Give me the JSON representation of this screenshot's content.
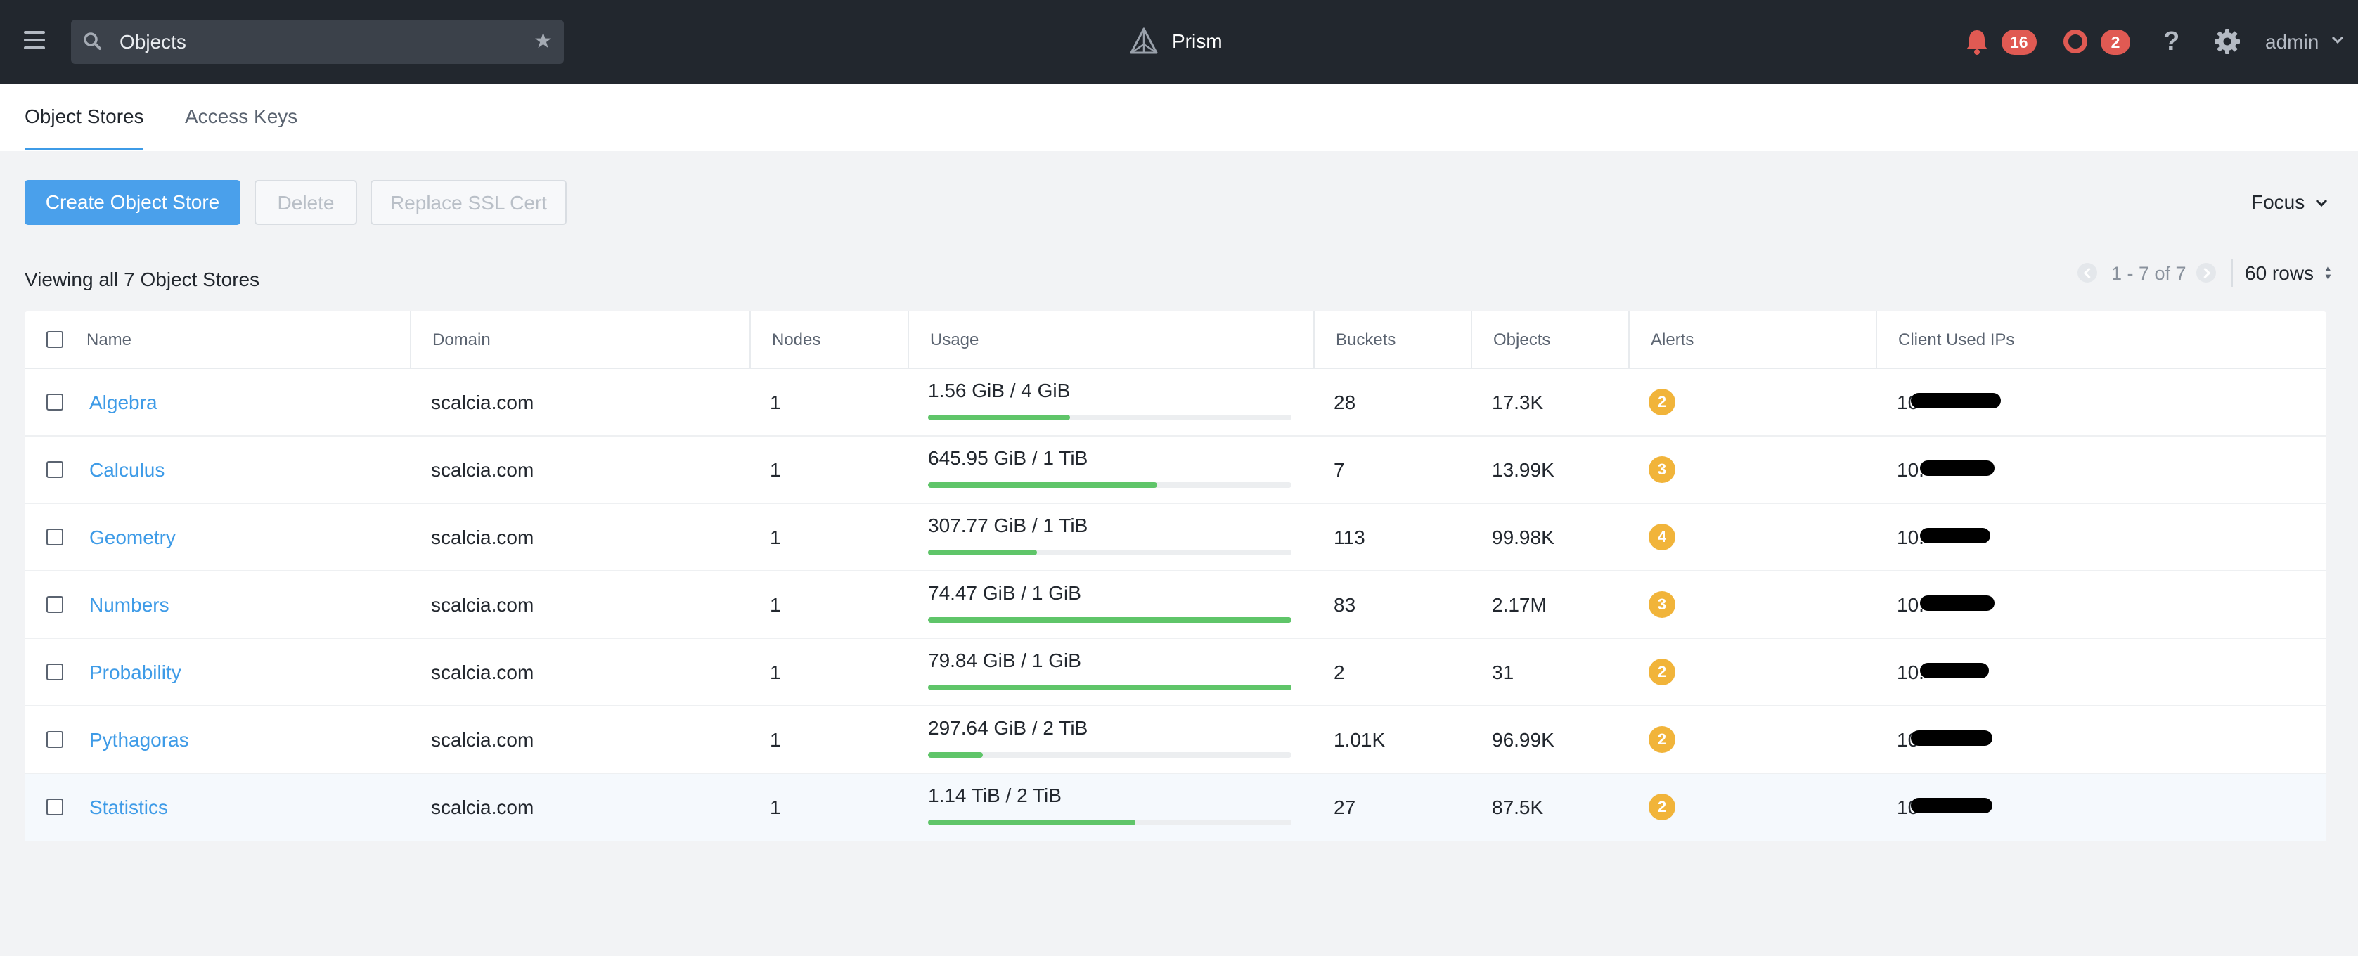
{
  "header": {
    "search_label": "Objects",
    "app_name": "Prism",
    "notifications_count": "16",
    "alerts_count": "2",
    "help_label": "?",
    "user": "admin"
  },
  "tabs": [
    {
      "label": "Object Stores",
      "active": true
    },
    {
      "label": "Access Keys",
      "active": false
    }
  ],
  "toolbar": {
    "create_label": "Create Object Store",
    "delete_label": "Delete",
    "ssl_label": "Replace SSL Cert",
    "focus_label": "Focus"
  },
  "summary": {
    "viewing_text": "Viewing all 7 Object Stores",
    "pager_text": "1 - 7 of 7",
    "rows_label": "60 rows"
  },
  "table": {
    "columns": [
      "Name",
      "Domain",
      "Nodes",
      "Usage",
      "Buckets",
      "Objects",
      "Alerts",
      "Client Used IPs"
    ],
    "rows": [
      {
        "name": "Algebra",
        "domain": "scalcia.com",
        "nodes": "1",
        "usage": "1.56 GiB / 4 GiB",
        "usage_fraction": 0.39,
        "buckets": "28",
        "objects": "17.3K",
        "alerts": "2",
        "ip_prefix": "10"
      },
      {
        "name": "Calculus",
        "domain": "scalcia.com",
        "nodes": "1",
        "usage": "645.95 GiB / 1 TiB",
        "usage_fraction": 0.63,
        "buckets": "7",
        "objects": "13.99K",
        "alerts": "3",
        "ip_prefix": "10."
      },
      {
        "name": "Geometry",
        "domain": "scalcia.com",
        "nodes": "1",
        "usage": "307.77 GiB / 1 TiB",
        "usage_fraction": 0.3,
        "buckets": "113",
        "objects": "99.98K",
        "alerts": "4",
        "ip_prefix": "10."
      },
      {
        "name": "Numbers",
        "domain": "scalcia.com",
        "nodes": "1",
        "usage": "74.47 GiB / 1 GiB",
        "usage_fraction": 1.0,
        "buckets": "83",
        "objects": "2.17M",
        "alerts": "3",
        "ip_prefix": "10."
      },
      {
        "name": "Probability",
        "domain": "scalcia.com",
        "nodes": "1",
        "usage": "79.84 GiB / 1 GiB",
        "usage_fraction": 1.0,
        "buckets": "2",
        "objects": "31",
        "alerts": "2",
        "ip_prefix": "10."
      },
      {
        "name": "Pythagoras",
        "domain": "scalcia.com",
        "nodes": "1",
        "usage": "297.64 GiB / 2 TiB",
        "usage_fraction": 0.15,
        "buckets": "1.01K",
        "objects": "96.99K",
        "alerts": "2",
        "ip_prefix": "10"
      },
      {
        "name": "Statistics",
        "domain": "scalcia.com",
        "nodes": "1",
        "usage": "1.14 TiB / 2 TiB",
        "usage_fraction": 0.57,
        "buckets": "27",
        "objects": "87.5K",
        "alerts": "2",
        "ip_prefix": "10"
      }
    ]
  },
  "colors": {
    "topbar": "#22272e",
    "accent_blue": "#3e9be7",
    "usage_green": "#5fc569",
    "alert_yellow": "#f1b43a",
    "badge_red": "#e05a53"
  }
}
